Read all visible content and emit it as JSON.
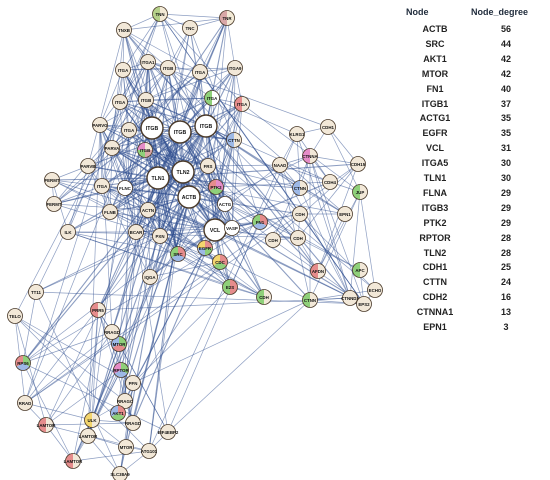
{
  "network": {
    "nodes": [
      {
        "label": "TNXB",
        "hub": false,
        "colors": [
          "#f2e8d8"
        ]
      },
      {
        "label": "TNN",
        "hub": false,
        "colors": [
          "#f3ead6",
          "#b5d08a"
        ]
      },
      {
        "label": "TNC",
        "hub": false,
        "colors": [
          "#f2e8d8"
        ]
      },
      {
        "label": "TNR",
        "hub": false,
        "colors": [
          "#f3ead6",
          "#d9a7a7"
        ]
      },
      {
        "label": "ITGA",
        "hub": false,
        "colors": [
          "#f2e8d8"
        ]
      },
      {
        "label": "ITGA1",
        "hub": false,
        "colors": [
          "#f2e8d8"
        ]
      },
      {
        "label": "ITGB",
        "hub": false,
        "colors": [
          "#f2e8d8"
        ]
      },
      {
        "label": "ITGA",
        "hub": false,
        "colors": [
          "#f2e8d8"
        ]
      },
      {
        "label": "ITGA9",
        "hub": false,
        "colors": [
          "#f2e8d8"
        ]
      },
      {
        "label": "ITGA",
        "hub": false,
        "colors": [
          "#f2e8d8"
        ]
      },
      {
        "label": "ITGB",
        "hub": false,
        "colors": [
          "#f2e8d8"
        ]
      },
      {
        "label": "ITGA",
        "hub": false,
        "colors": [
          "#f2e8d8"
        ]
      },
      {
        "label": "ITGA",
        "hub": false,
        "colors": [
          "#ffffff",
          "#8fd07a"
        ]
      },
      {
        "label": "ITGA",
        "hub": false,
        "colors": [
          "#f2e8d8",
          "#e58c8c"
        ]
      },
      {
        "label": "PARVA",
        "hub": false,
        "colors": [
          "#f2e8d8"
        ]
      },
      {
        "label": "PARVG",
        "hub": false,
        "colors": [
          "#f2e8d8"
        ]
      },
      {
        "label": "ITGB",
        "hub": true,
        "colors": [
          "#ffffff"
        ]
      },
      {
        "label": "ITGB",
        "hub": true,
        "colors": [
          "#ffffff"
        ]
      },
      {
        "label": "ITGB",
        "hub": true,
        "colors": [
          "#ffffff"
        ]
      },
      {
        "label": "CTTN",
        "hub": false,
        "colors": [
          "#f2e8d8",
          "#9db8e6"
        ]
      },
      {
        "label": "ITGB",
        "hub": false,
        "colors": [
          "#f2e8d8",
          "#d9a7a7",
          "#8fd07a",
          "#e58cc8"
        ]
      },
      {
        "label": "FERMT",
        "hub": false,
        "colors": [
          "#f2e8d8"
        ]
      },
      {
        "label": "PARVB",
        "hub": false,
        "colors": [
          "#f2e8d8"
        ]
      },
      {
        "label": "ITGA",
        "hub": false,
        "colors": [
          "#f2e8d8"
        ]
      },
      {
        "label": "FLNC",
        "hub": false,
        "colors": [
          "#ffffff"
        ]
      },
      {
        "label": "TLN1",
        "hub": true,
        "colors": [
          "#ffffff"
        ]
      },
      {
        "label": "TLN2",
        "hub": true,
        "colors": [
          "#ffffff"
        ]
      },
      {
        "label": "FRS",
        "hub": false,
        "colors": [
          "#f2e8d8"
        ]
      },
      {
        "label": "PTK2",
        "hub": false,
        "colors": [
          "#e58cc8",
          "#8fd07a",
          "#e58c8c"
        ]
      },
      {
        "label": "FERMT",
        "hub": false,
        "colors": [
          "#f2e8d8"
        ]
      },
      {
        "label": "FLNB",
        "hub": false,
        "colors": [
          "#f2e8d8"
        ]
      },
      {
        "label": "ACTB",
        "hub": true,
        "colors": [
          "#ffffff"
        ]
      },
      {
        "label": "ACTG",
        "hub": false,
        "colors": [
          "#ffffff"
        ]
      },
      {
        "label": "ACTN",
        "hub": false,
        "colors": [
          "#f2e8d8"
        ]
      },
      {
        "label": "ILK",
        "hub": false,
        "colors": [
          "#f2e8d8"
        ]
      },
      {
        "label": "BCAR",
        "hub": false,
        "colors": [
          "#f2e8d8"
        ]
      },
      {
        "label": "PXN",
        "hub": false,
        "colors": [
          "#f2e8d8"
        ]
      },
      {
        "label": "VCL",
        "hub": true,
        "colors": [
          "#ffffff"
        ]
      },
      {
        "label": "VASP",
        "hub": false,
        "colors": [
          "#ffffff"
        ]
      },
      {
        "label": "SRC",
        "hub": false,
        "colors": [
          "#e58c8c",
          "#9db8e6",
          "#8fd07a"
        ]
      },
      {
        "label": "CDC",
        "hub": false,
        "colors": [
          "#e58c8c",
          "#8fd07a",
          "#f3d56e"
        ]
      },
      {
        "label": "IQGA",
        "hub": false,
        "colors": [
          "#f2e8d8"
        ]
      },
      {
        "label": "E2S",
        "hub": false,
        "colors": [
          "#e58c8c",
          "#8fd07a"
        ]
      },
      {
        "label": "CDH",
        "hub": false,
        "colors": [
          "#f2e8d8",
          "#8fd07a"
        ]
      },
      {
        "label": "KLRG1",
        "hub": false,
        "colors": [
          "#f2e8d8"
        ]
      },
      {
        "label": "CDH1",
        "hub": false,
        "colors": [
          "#f2e8d8"
        ]
      },
      {
        "label": "CDH15",
        "hub": false,
        "colors": [
          "#f2e8d8"
        ]
      },
      {
        "label": "NAAD",
        "hub": false,
        "colors": [
          "#f2e8d8"
        ]
      },
      {
        "label": "CTNNA",
        "hub": false,
        "colors": [
          "#f2e8d8",
          "#e58cc8"
        ]
      },
      {
        "label": "CTNN",
        "hub": false,
        "colors": [
          "#f2e8d8",
          "#9db8e6"
        ]
      },
      {
        "label": "CDH",
        "hub": false,
        "colors": [
          "#f2e8d8"
        ]
      },
      {
        "label": "CDH",
        "hub": false,
        "colors": [
          "#f2e8d8"
        ]
      },
      {
        "label": "CDH",
        "hub": false,
        "colors": [
          "#f2e8d8"
        ]
      },
      {
        "label": "CDH4",
        "hub": false,
        "colors": [
          "#f2e8d8"
        ]
      },
      {
        "label": "JUP",
        "hub": false,
        "colors": [
          "#f2e8d8",
          "#8fd07a"
        ]
      },
      {
        "label": "EPN1",
        "hub": false,
        "colors": [
          "#f2e8d8"
        ]
      },
      {
        "label": "CTNND2",
        "hub": false,
        "colors": [
          "#f2e8d8"
        ]
      },
      {
        "label": "EPS2",
        "hub": false,
        "colors": [
          "#f2e8d8"
        ]
      },
      {
        "label": "ECHO",
        "hub": false,
        "colors": [
          "#f2e8d8"
        ]
      },
      {
        "label": "APC",
        "hub": false,
        "colors": [
          "#f2e8d8",
          "#8fd07a"
        ]
      },
      {
        "label": "AFDN",
        "hub": false,
        "colors": [
          "#f2e8d8",
          "#e58c8c"
        ]
      },
      {
        "label": "CTNN",
        "hub": false,
        "colors": [
          "#f2e8d8",
          "#8fd07a"
        ]
      },
      {
        "label": "TT11",
        "hub": false,
        "colors": [
          "#f2e8d8"
        ]
      },
      {
        "label": "TELO",
        "hub": false,
        "colors": [
          "#f2e8d8"
        ]
      },
      {
        "label": "PRR5",
        "hub": false,
        "colors": [
          "#f2e8d8",
          "#e58c8c"
        ]
      },
      {
        "label": "RPS6",
        "hub": false,
        "colors": [
          "#8fd07a",
          "#9db8e6",
          "#e58c8c"
        ]
      },
      {
        "label": "RPTOR",
        "hub": false,
        "colors": [
          "#8fd07a",
          "#9db8e6",
          "#e58cc8"
        ]
      },
      {
        "label": "MTOR",
        "hub": false,
        "colors": [
          "#8fd07a",
          "#e58c8c",
          "#9db8e6"
        ]
      },
      {
        "label": "RRAGC",
        "hub": false,
        "colors": [
          "#f2e8d8"
        ]
      },
      {
        "label": "RRAGD",
        "hub": false,
        "colors": [
          "#f2e8d8"
        ]
      },
      {
        "label": "RRAD",
        "hub": false,
        "colors": [
          "#f2e8d8"
        ]
      },
      {
        "label": "LAMTOR",
        "hub": false,
        "colors": [
          "#f2e8d8",
          "#e58c8c"
        ]
      },
      {
        "label": "LAMTOR",
        "hub": false,
        "colors": [
          "#f2e8d8"
        ]
      },
      {
        "label": "LAMTOR",
        "hub": false,
        "colors": [
          "#f2e8d8",
          "#e58c8c"
        ]
      },
      {
        "label": "MTOR",
        "hub": false,
        "colors": [
          "#f2e8d8"
        ]
      },
      {
        "label": "ATG101",
        "hub": false,
        "colors": [
          "#f2e8d8"
        ]
      },
      {
        "label": "SLC38A9",
        "hub": false,
        "colors": [
          "#f2e8d8"
        ]
      },
      {
        "label": "EIF4EBP2",
        "hub": false,
        "colors": [
          "#f2e8d8"
        ]
      },
      {
        "label": "PFN",
        "hub": false,
        "colors": [
          "#f2e8d8"
        ]
      },
      {
        "label": "RRAGD",
        "hub": false,
        "colors": [
          "#f2e8d8"
        ]
      },
      {
        "label": "ULK",
        "hub": false,
        "colors": [
          "#f2e8d8",
          "#f3d56e"
        ]
      },
      {
        "label": "AKT1",
        "hub": false,
        "colors": [
          "#e58c8c",
          "#8fd07a",
          "#9db8e6"
        ]
      },
      {
        "label": "EGFR",
        "hub": false,
        "colors": [
          "#e58c8c",
          "#8fd07a",
          "#9db8e6",
          "#f3d56e"
        ]
      },
      {
        "label": "FN1",
        "hub": false,
        "colors": [
          "#e58c8c",
          "#9db8e6",
          "#8fd07a"
        ]
      }
    ],
    "edge_color": "#2f4f8f"
  },
  "table": {
    "headers": [
      "Node",
      "Node_degree"
    ],
    "rows": [
      {
        "node": "ACTB",
        "degree": 56
      },
      {
        "node": "SRC",
        "degree": 44
      },
      {
        "node": "AKT1",
        "degree": 42
      },
      {
        "node": "MTOR",
        "degree": 42
      },
      {
        "node": "FN1",
        "degree": 40
      },
      {
        "node": "ITGB1",
        "degree": 37
      },
      {
        "node": "ACTG1",
        "degree": 35
      },
      {
        "node": "EGFR",
        "degree": 35
      },
      {
        "node": "VCL",
        "degree": 31
      },
      {
        "node": "ITGA5",
        "degree": 30
      },
      {
        "node": "TLN1",
        "degree": 30
      },
      {
        "node": "FLNA",
        "degree": 29
      },
      {
        "node": "ITGB3",
        "degree": 29
      },
      {
        "node": "PTK2",
        "degree": 29
      },
      {
        "node": "RPTOR",
        "degree": 28
      },
      {
        "node": "TLN2",
        "degree": 28
      },
      {
        "node": "CDH1",
        "degree": 25
      },
      {
        "node": "CTTN",
        "degree": 24
      },
      {
        "node": "CDH2",
        "degree": 16
      },
      {
        "node": "CTNNA1",
        "degree": 13
      },
      {
        "node": "EPN1",
        "degree": 3
      }
    ]
  }
}
